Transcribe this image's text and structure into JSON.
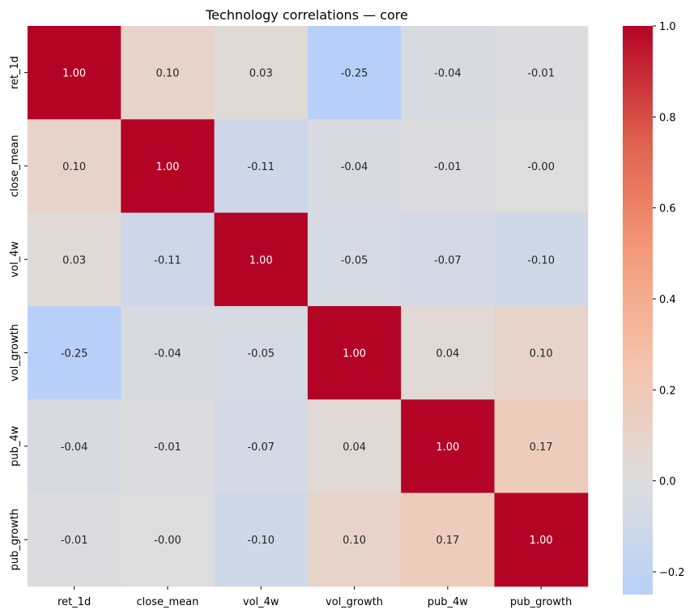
{
  "chart_data": {
    "type": "heatmap",
    "title": "Technology correlations — core",
    "x_labels": [
      "ret_1d",
      "close_mean",
      "vol_4w",
      "vol_growth",
      "pub_4w",
      "pub_growth"
    ],
    "y_labels": [
      "ret_1d",
      "close_mean",
      "vol_4w",
      "vol_growth",
      "pub_4w",
      "pub_growth"
    ],
    "values": [
      [
        1.0,
        0.1,
        0.03,
        -0.25,
        -0.04,
        -0.01
      ],
      [
        0.1,
        1.0,
        -0.11,
        -0.04,
        -0.01,
        -0.0
      ],
      [
        0.03,
        -0.11,
        1.0,
        -0.05,
        -0.07,
        -0.1
      ],
      [
        -0.25,
        -0.04,
        -0.05,
        1.0,
        0.04,
        0.1
      ],
      [
        -0.04,
        -0.01,
        -0.07,
        0.04,
        1.0,
        0.17
      ],
      [
        -0.01,
        -0.0,
        -0.1,
        0.1,
        0.17,
        1.0
      ]
    ],
    "cell_labels": [
      [
        "1.00",
        "0.10",
        "0.03",
        "-0.25",
        "-0.04",
        "-0.01"
      ],
      [
        "0.10",
        "1.00",
        "-0.11",
        "-0.04",
        "-0.01",
        "-0.00"
      ],
      [
        "0.03",
        "-0.11",
        "1.00",
        "-0.05",
        "-0.07",
        "-0.10"
      ],
      [
        "-0.25",
        "-0.04",
        "-0.05",
        "1.00",
        "0.04",
        "0.10"
      ],
      [
        "-0.04",
        "-0.01",
        "-0.07",
        "0.04",
        "1.00",
        "0.17"
      ],
      [
        "-0.01",
        "-0.00",
        "-0.10",
        "0.10",
        "0.17",
        "1.00"
      ]
    ],
    "colormap": "coolwarm",
    "center": 0,
    "vmin": -0.25,
    "vmax": 1.0,
    "colorbar_ticks": [
      -0.2,
      0.0,
      0.2,
      0.4,
      0.6,
      0.8,
      1.0
    ],
    "colorbar_tick_labels": [
      "−0.2",
      "0.0",
      "0.2",
      "0.4",
      "0.6",
      "0.8",
      "1.0"
    ],
    "grid": false,
    "legend": "colorbar-right"
  }
}
